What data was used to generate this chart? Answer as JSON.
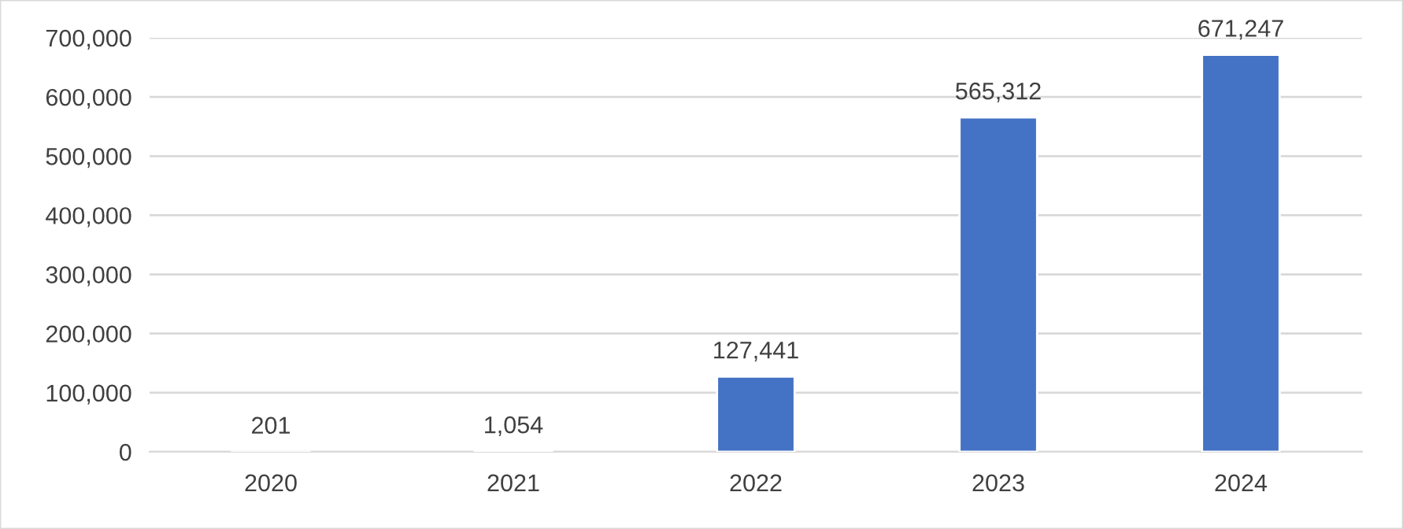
{
  "chart_data": {
    "type": "bar",
    "categories": [
      "2020",
      "2021",
      "2022",
      "2023",
      "2024"
    ],
    "values": [
      201,
      1054,
      127441,
      565312,
      671247
    ],
    "value_labels": [
      "201",
      "1,054",
      "127,441",
      "565,312",
      "671,247"
    ],
    "color": "#4472c4",
    "ylim": [
      0,
      700000
    ],
    "yticks": [
      {
        "value": 0,
        "label": "0"
      },
      {
        "value": 100000,
        "label": "100,000"
      },
      {
        "value": 200000,
        "label": "200,000"
      },
      {
        "value": 300000,
        "label": "300,000"
      },
      {
        "value": 400000,
        "label": "400,000"
      },
      {
        "value": 500000,
        "label": "500,000"
      },
      {
        "value": 600000,
        "label": "600,000"
      },
      {
        "value": 700000,
        "label": "700,000"
      }
    ],
    "grid": "y"
  }
}
